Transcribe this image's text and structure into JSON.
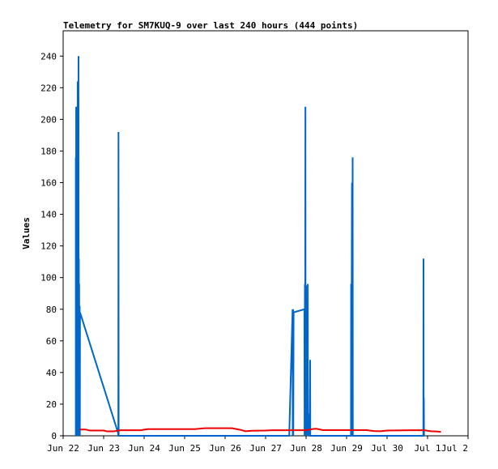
{
  "chart_data": {
    "type": "line",
    "title": "Telemetry for SM7KUQ-9 over last 240 hours (444 points)",
    "ylabel": "Values",
    "xlabel": "",
    "ylim": [
      0,
      256
    ],
    "xlim": [
      0,
      240
    ],
    "yticks": [
      0,
      20,
      40,
      60,
      80,
      100,
      120,
      140,
      160,
      180,
      200,
      220,
      240
    ],
    "xticks": [
      {
        "label": "Jun 22",
        "x": 0
      },
      {
        "label": "Jun 23",
        "x": 24
      },
      {
        "label": "Jun 24",
        "x": 48
      },
      {
        "label": "Jun 25",
        "x": 72
      },
      {
        "label": "Jun 26",
        "x": 96
      },
      {
        "label": "Jun 27",
        "x": 120
      },
      {
        "label": "Jun 28",
        "x": 144
      },
      {
        "label": "Jun 29",
        "x": 168
      },
      {
        "label": "Jul 30",
        "x": 192
      },
      {
        "label": "Jul 1",
        "x": 216
      },
      {
        "label": "Jul 2",
        "x": 240
      }
    ],
    "grid": false,
    "legend": "none",
    "series": [
      {
        "color": "#0066cc",
        "points": [
          [
            7.5,
            0
          ],
          [
            7.5,
            176
          ],
          [
            7.6,
            0
          ],
          [
            7.7,
            208
          ],
          [
            7.8,
            0
          ],
          [
            7.9,
            208
          ],
          [
            8.0,
            0
          ],
          [
            8.1,
            200
          ],
          [
            8.2,
            0
          ],
          [
            8.3,
            176
          ],
          [
            8.4,
            0
          ],
          [
            8.6,
            224
          ],
          [
            8.7,
            0
          ],
          [
            8.8,
            150
          ],
          [
            8.9,
            0
          ],
          [
            9.1,
            240
          ],
          [
            9.2,
            0
          ],
          [
            9.3,
            112
          ],
          [
            9.4,
            0
          ],
          [
            9.5,
            96
          ],
          [
            9.6,
            0
          ],
          [
            9.8,
            82
          ],
          [
            9.9,
            0
          ],
          [
            10.0,
            78
          ],
          [
            32.5,
            2
          ],
          [
            32.7,
            0
          ],
          [
            32.8,
            192
          ],
          [
            32.9,
            0
          ],
          [
            134.0,
            0
          ],
          [
            136.0,
            80
          ],
          [
            136.1,
            0
          ],
          [
            136.3,
            80
          ],
          [
            136.4,
            0
          ],
          [
            136.6,
            78
          ],
          [
            143.0,
            80
          ],
          [
            143.1,
            0
          ],
          [
            143.3,
            96
          ],
          [
            143.4,
            0
          ],
          [
            143.6,
            208
          ],
          [
            143.7,
            0
          ],
          [
            144.0,
            95
          ],
          [
            144.1,
            0
          ],
          [
            144.8,
            64
          ],
          [
            144.9,
            0
          ],
          [
            145.0,
            96
          ],
          [
            145.1,
            0
          ],
          [
            146.0,
            14
          ],
          [
            146.1,
            0
          ],
          [
            146.4,
            48
          ],
          [
            146.5,
            0
          ],
          [
            170.6,
            0
          ],
          [
            170.7,
            96
          ],
          [
            170.8,
            0
          ],
          [
            171.2,
            160
          ],
          [
            171.3,
            0
          ],
          [
            171.6,
            176
          ],
          [
            171.7,
            0
          ],
          [
            213.5,
            0
          ],
          [
            213.6,
            112
          ],
          [
            213.7,
            0
          ],
          [
            213.8,
            24
          ],
          [
            213.9,
            0
          ]
        ]
      },
      {
        "color": "#ee0000",
        "points": [
          [
            10,
            4.0
          ],
          [
            13,
            4.0
          ],
          [
            16,
            3.3
          ],
          [
            24,
            3.3
          ],
          [
            26,
            2.8
          ],
          [
            30,
            2.8
          ],
          [
            34,
            3.5
          ],
          [
            46,
            3.5
          ],
          [
            50,
            4.2
          ],
          [
            78,
            4.2
          ],
          [
            84,
            4.8
          ],
          [
            100,
            4.8
          ],
          [
            105,
            3.8
          ],
          [
            108,
            2.9
          ],
          [
            112,
            3.2
          ],
          [
            120,
            3.3
          ],
          [
            124,
            3.5
          ],
          [
            144,
            3.5
          ],
          [
            148,
            4.3
          ],
          [
            150,
            4.5
          ],
          [
            154,
            3.6
          ],
          [
            180,
            3.6
          ],
          [
            184,
            3.0
          ],
          [
            188,
            2.9
          ],
          [
            192,
            3.3
          ],
          [
            206,
            3.5
          ],
          [
            214,
            3.5
          ],
          [
            218,
            2.9
          ],
          [
            222,
            2.7
          ],
          [
            224,
            2.4
          ]
        ]
      }
    ]
  }
}
